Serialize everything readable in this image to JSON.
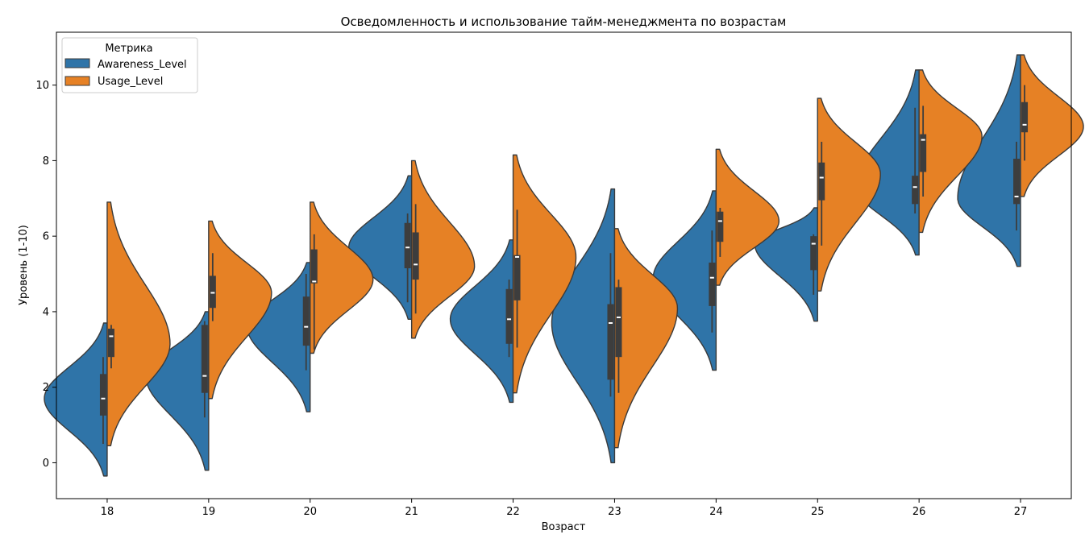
{
  "chart_data": {
    "type": "violin",
    "title": "Осведомленность и использование тайм-менеджмента по возрастам",
    "xlabel": "Возраст",
    "ylabel": "Уровень (1-10)",
    "categories": [
      "18",
      "19",
      "20",
      "21",
      "22",
      "23",
      "24",
      "25",
      "26",
      "27"
    ],
    "ylim": [
      -0.95,
      11.4
    ],
    "yticks": [
      0,
      2,
      4,
      6,
      8,
      10
    ],
    "split": true,
    "legend": {
      "title": "Метрика",
      "position": "upper-left"
    },
    "series": [
      {
        "name": "Awareness_Level",
        "color": "#2f74a8",
        "violins": [
          {
            "x": "18",
            "kde_min": -0.35,
            "kde_max": 3.7,
            "peak": 1.7,
            "stats": {
              "whisker_low": 0.5,
              "q1": 1.25,
              "median": 1.7,
              "q3": 2.35,
              "whisker_high": 2.8
            }
          },
          {
            "x": "19",
            "kde_min": -0.2,
            "kde_max": 4.0,
            "peak": 2.3,
            "stats": {
              "whisker_low": 1.2,
              "q1": 1.85,
              "median": 2.3,
              "q3": 3.65,
              "whisker_high": 3.75
            }
          },
          {
            "x": "20",
            "kde_min": 1.35,
            "kde_max": 5.3,
            "peak": 3.6,
            "stats": {
              "whisker_low": 2.45,
              "q1": 3.1,
              "median": 3.6,
              "q3": 4.4,
              "whisker_high": 5.0
            }
          },
          {
            "x": "21",
            "kde_min": 3.8,
            "kde_max": 7.6,
            "peak": 5.7,
            "stats": {
              "whisker_low": 4.25,
              "q1": 5.15,
              "median": 5.7,
              "q3": 6.35,
              "whisker_high": 6.6
            }
          },
          {
            "x": "22",
            "kde_min": 1.6,
            "kde_max": 5.9,
            "peak": 3.8,
            "stats": {
              "whisker_low": 2.8,
              "q1": 3.15,
              "median": 3.8,
              "q3": 4.6,
              "whisker_high": 4.85
            }
          },
          {
            "x": "23",
            "kde_min": 0.0,
            "kde_max": 7.25,
            "peak": 3.7,
            "stats": {
              "whisker_low": 1.75,
              "q1": 2.2,
              "median": 3.7,
              "q3": 4.2,
              "whisker_high": 5.55
            }
          },
          {
            "x": "24",
            "kde_min": 2.45,
            "kde_max": 7.2,
            "peak": 4.9,
            "stats": {
              "whisker_low": 3.45,
              "q1": 4.15,
              "median": 4.9,
              "q3": 5.3,
              "whisker_high": 6.15
            }
          },
          {
            "x": "25",
            "kde_min": 3.75,
            "kde_max": 6.75,
            "peak": 5.8,
            "stats": {
              "whisker_low": 4.45,
              "q1": 5.1,
              "median": 5.8,
              "q3": 6.0,
              "whisker_high": 6.05
            }
          },
          {
            "x": "26",
            "kde_min": 5.5,
            "kde_max": 10.4,
            "peak": 7.3,
            "stats": {
              "whisker_low": 6.6,
              "q1": 6.85,
              "median": 7.3,
              "q3": 7.6,
              "whisker_high": 9.4
            }
          },
          {
            "x": "27",
            "kde_min": 5.2,
            "kde_max": 10.8,
            "peak": 7.0,
            "stats": {
              "whisker_low": 6.15,
              "q1": 6.85,
              "median": 7.05,
              "q3": 8.05,
              "whisker_high": 8.5
            }
          }
        ]
      },
      {
        "name": "Usage_Level",
        "color": "#e68125",
        "violins": [
          {
            "x": "18",
            "kde_min": 0.45,
            "kde_max": 6.9,
            "peak": 3.15,
            "stats": {
              "whisker_low": 2.5,
              "q1": 2.8,
              "median": 3.35,
              "q3": 3.55,
              "whisker_high": 3.65
            }
          },
          {
            "x": "19",
            "kde_min": 1.7,
            "kde_max": 6.4,
            "peak": 4.5,
            "stats": {
              "whisker_low": 3.75,
              "q1": 4.1,
              "median": 4.5,
              "q3": 4.95,
              "whisker_high": 5.55
            }
          },
          {
            "x": "20",
            "kde_min": 2.9,
            "kde_max": 6.9,
            "peak": 4.85,
            "stats": {
              "whisker_low": 3.0,
              "q1": 4.75,
              "median": 4.8,
              "q3": 5.65,
              "whisker_high": 6.05
            }
          },
          {
            "x": "21",
            "kde_min": 3.3,
            "kde_max": 8.0,
            "peak": 5.2,
            "stats": {
              "whisker_low": 3.95,
              "q1": 4.85,
              "median": 5.25,
              "q3": 6.1,
              "whisker_high": 6.85
            }
          },
          {
            "x": "22",
            "kde_min": 1.85,
            "kde_max": 8.15,
            "peak": 5.45,
            "stats": {
              "whisker_low": 3.05,
              "q1": 4.3,
              "median": 5.45,
              "q3": 5.5,
              "whisker_high": 6.7
            }
          },
          {
            "x": "23",
            "kde_min": 0.4,
            "kde_max": 6.2,
            "peak": 4.1,
            "stats": {
              "whisker_low": 1.85,
              "q1": 2.8,
              "median": 3.85,
              "q3": 4.65,
              "whisker_high": 4.85
            }
          },
          {
            "x": "24",
            "kde_min": 4.7,
            "kde_max": 8.3,
            "peak": 6.4,
            "stats": {
              "whisker_low": 5.45,
              "q1": 5.85,
              "median": 6.4,
              "q3": 6.65,
              "whisker_high": 6.75
            }
          },
          {
            "x": "25",
            "kde_min": 4.55,
            "kde_max": 9.65,
            "peak": 7.65,
            "stats": {
              "whisker_low": 5.75,
              "q1": 6.95,
              "median": 7.55,
              "q3": 7.95,
              "whisker_high": 8.5
            }
          },
          {
            "x": "26",
            "kde_min": 6.1,
            "kde_max": 10.4,
            "peak": 8.65,
            "stats": {
              "whisker_low": 7.05,
              "q1": 7.7,
              "median": 8.55,
              "q3": 8.7,
              "whisker_high": 9.45
            }
          },
          {
            "x": "27",
            "kde_min": 7.05,
            "kde_max": 10.8,
            "peak": 8.9,
            "stats": {
              "whisker_low": 8.0,
              "q1": 8.75,
              "median": 8.95,
              "q3": 9.55,
              "whisker_high": 10.0
            }
          }
        ]
      }
    ]
  }
}
